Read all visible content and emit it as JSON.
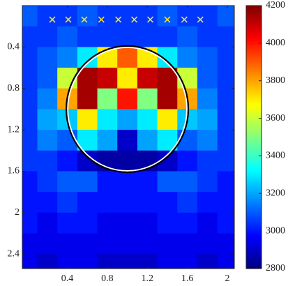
{
  "chart_data": {
    "type": "heatmap",
    "x": [
      0,
      0.2,
      0.4,
      0.6,
      0.8,
      1.0,
      1.2,
      1.4,
      1.6,
      1.8,
      2.0
    ],
    "y": [
      0.1,
      0.3,
      0.5,
      0.7,
      0.9,
      1.1,
      1.3,
      1.5,
      1.7,
      1.9,
      2.1,
      2.3,
      2.5
    ],
    "z": [
      [
        3100,
        3050,
        3050,
        3100,
        3050,
        3050,
        3050,
        3100,
        3050,
        3050,
        3100
      ],
      [
        3050,
        3050,
        3100,
        3050,
        3050,
        3050,
        3050,
        3050,
        3100,
        3050,
        3050
      ],
      [
        3050,
        3100,
        3150,
        3300,
        3700,
        3900,
        3700,
        3300,
        3150,
        3100,
        3050
      ],
      [
        3050,
        3100,
        3600,
        4150,
        4100,
        3700,
        4100,
        4150,
        3600,
        3100,
        3050
      ],
      [
        3050,
        3150,
        3800,
        4150,
        3500,
        4000,
        3500,
        4150,
        3800,
        3150,
        3050
      ],
      [
        3050,
        3200,
        3250,
        3700,
        3300,
        3200,
        3300,
        3700,
        3250,
        3200,
        3050
      ],
      [
        3050,
        3150,
        3100,
        3300,
        3200,
        2900,
        3200,
        3300,
        3100,
        3150,
        3050
      ],
      [
        3050,
        3050,
        3000,
        2900,
        2850,
        2850,
        2850,
        2900,
        3000,
        3050,
        3050
      ],
      [
        3000,
        3050,
        3100,
        3100,
        3000,
        3000,
        3000,
        3100,
        3100,
        3050,
        3000
      ],
      [
        3000,
        3000,
        3050,
        3000,
        3000,
        3000,
        3000,
        3000,
        3050,
        3000,
        3000
      ],
      [
        3000,
        2950,
        3000,
        3000,
        2950,
        2950,
        2950,
        3000,
        3000,
        2950,
        3000
      ],
      [
        2950,
        2950,
        2950,
        2950,
        2950,
        2950,
        2950,
        2950,
        2950,
        2950,
        2950
      ],
      [
        2950,
        2900,
        2950,
        2950,
        2900,
        2900,
        2900,
        2950,
        2950,
        2900,
        2950
      ]
    ],
    "xlim": [
      -0.05,
      2.07
    ],
    "ylim": [
      0,
      2.54
    ],
    "xticks": [
      0.4,
      0.8,
      1.2,
      1.6,
      2
    ],
    "yticks": [
      0.4,
      0.8,
      1.2,
      1.6,
      2,
      2.4
    ],
    "clim": [
      2800,
      4200
    ],
    "cticks": [
      2800,
      3000,
      3200,
      3400,
      3600,
      3800,
      4000,
      4200
    ],
    "colormap": "jet",
    "markers": {
      "color": "#f0e040",
      "x": [
        0.25,
        0.41,
        0.57,
        0.74,
        0.91,
        1.07,
        1.23,
        1.4,
        1.57,
        1.73
      ],
      "y": [
        0.135,
        0.135,
        0.135,
        0.135,
        0.135,
        0.135,
        0.135,
        0.135,
        0.135,
        0.135
      ]
    },
    "circle": {
      "cx": 1.0,
      "cy": 1.0,
      "r": 0.61,
      "color": "#000000"
    }
  }
}
